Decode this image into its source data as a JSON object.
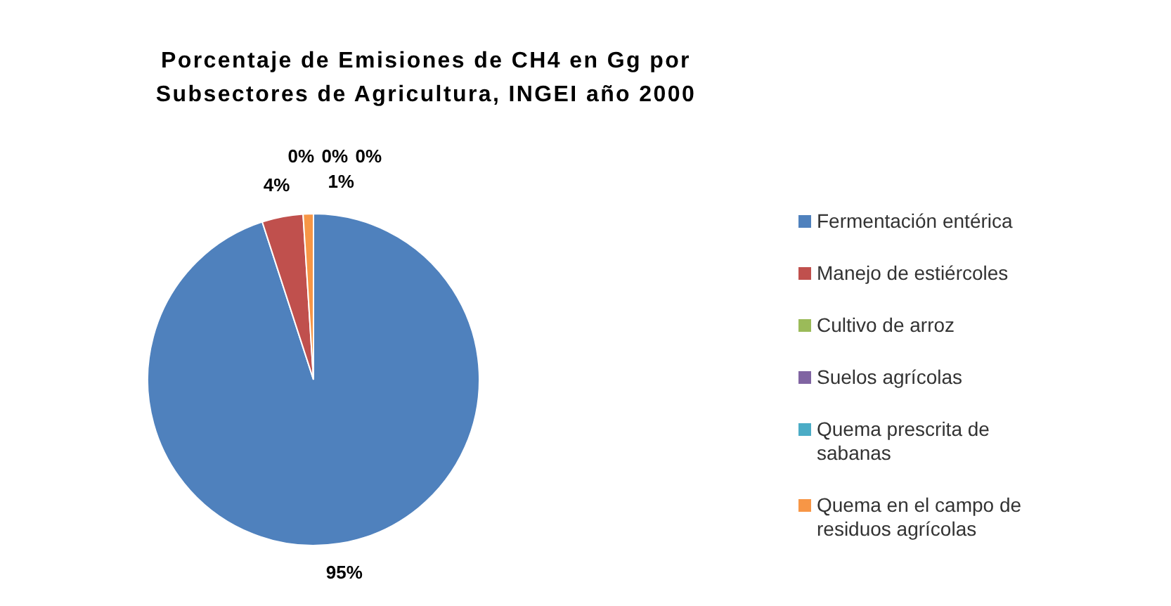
{
  "chart_data": {
    "type": "pie",
    "title": "Porcentaje de Emisiones de CH4 en Gg por Subsectores de Agricultura, INGEI año 2000",
    "categories": [
      "Fermentación entérica",
      "Manejo de estiércoles",
      "Cultivo de arroz",
      "Suelos agrícolas",
      "Quema prescrita de sabanas",
      "Quema en el campo de residuos agrícolas"
    ],
    "values": [
      95,
      4,
      0,
      0,
      0,
      1
    ],
    "value_labels": [
      "95%",
      "4%",
      "0%",
      "0%",
      "0%",
      "1%"
    ],
    "colors": [
      "#4f81bd",
      "#c0504d",
      "#9bbb59",
      "#8064a2",
      "#4bacc6",
      "#f79646"
    ],
    "legend": "right"
  }
}
